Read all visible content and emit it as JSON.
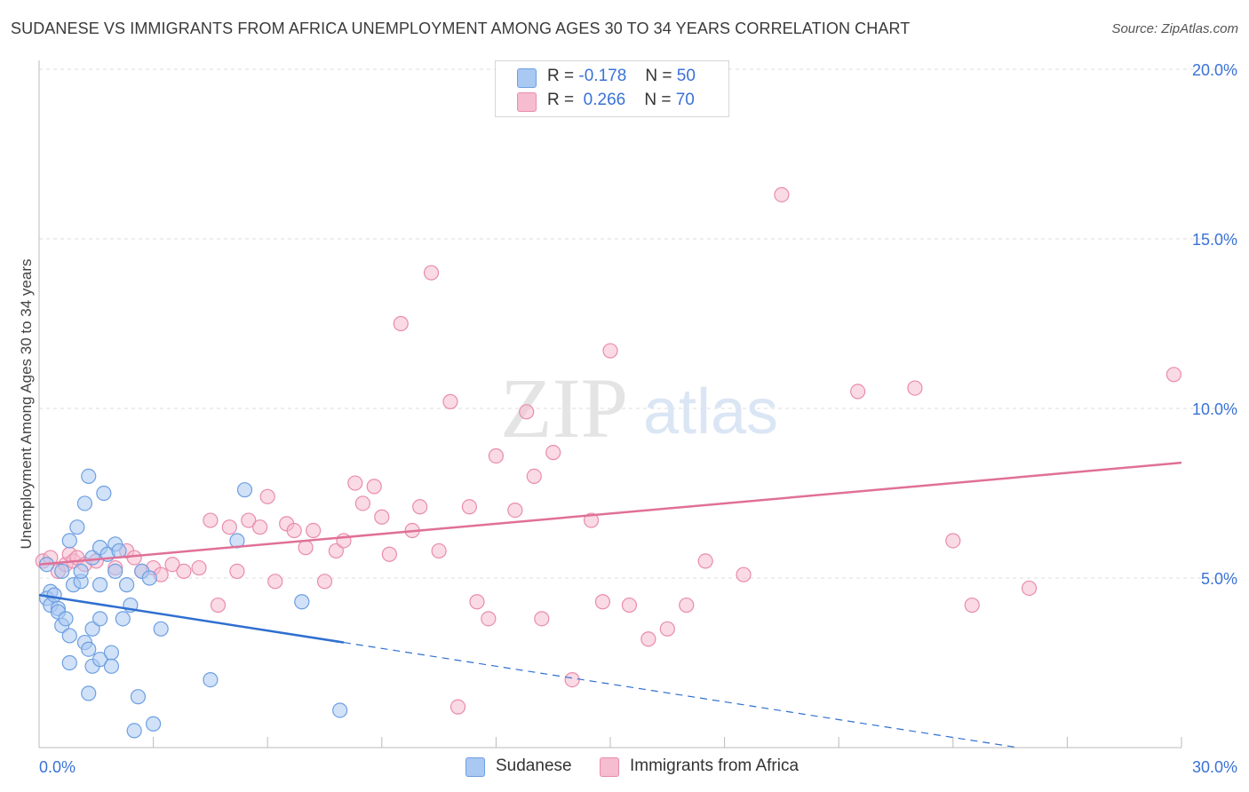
{
  "title": "SUDANESE VS IMMIGRANTS FROM AFRICA UNEMPLOYMENT AMONG AGES 30 TO 34 YEARS CORRELATION CHART",
  "source": "Source: ZipAtlas.com",
  "watermark": {
    "zip": "ZIP",
    "atlas": "atlas"
  },
  "colors": {
    "blue_fill": "#a9c8f2",
    "blue_stroke": "#6d9fe0",
    "blue_line": "#2f6fd0",
    "pink_fill": "#f6bcd0",
    "pink_stroke": "#e98cac",
    "pink_line": "#e07098",
    "axis_text": "#3a72d6",
    "grid": "#dcdcdc"
  },
  "legend": {
    "r_label": "R =",
    "n_label": "N =",
    "sudanese": {
      "r": "-0.178",
      "n": "50"
    },
    "africa": {
      "r": "0.266",
      "n": "70"
    }
  },
  "chart_data": {
    "type": "scatter",
    "title": "SUDANESE VS IMMIGRANTS FROM AFRICA UNEMPLOYMENT AMONG AGES 30 TO 34 YEARS CORRELATION CHART",
    "xlabel": "",
    "ylabel": "Unemployment Among Ages 30 to 34 years",
    "xlim": [
      0,
      30
    ],
    "ylim": [
      0,
      20
    ],
    "x_tick_labels": [
      "0.0%",
      "30.0%"
    ],
    "y_ticks": [
      5,
      10,
      15,
      20
    ],
    "y_tick_labels": [
      "5.0%",
      "10.0%",
      "15.0%",
      "20.0%"
    ],
    "grid": true,
    "legend_position": "top-center",
    "series": [
      {
        "name": "Sudanese",
        "color": "#a9c8f2",
        "points": [
          [
            0.2,
            5.4
          ],
          [
            0.3,
            4.6
          ],
          [
            0.2,
            4.4
          ],
          [
            0.3,
            4.2
          ],
          [
            0.4,
            4.5
          ],
          [
            0.5,
            4.1
          ],
          [
            0.5,
            4.0
          ],
          [
            0.6,
            5.2
          ],
          [
            0.6,
            3.6
          ],
          [
            0.7,
            3.8
          ],
          [
            0.8,
            6.1
          ],
          [
            0.8,
            3.3
          ],
          [
            0.8,
            2.5
          ],
          [
            0.9,
            4.8
          ],
          [
            1.0,
            6.5
          ],
          [
            1.1,
            4.9
          ],
          [
            1.1,
            5.2
          ],
          [
            1.2,
            3.1
          ],
          [
            1.2,
            7.2
          ],
          [
            1.3,
            8.0
          ],
          [
            1.3,
            2.9
          ],
          [
            1.3,
            1.6
          ],
          [
            1.4,
            3.5
          ],
          [
            1.4,
            2.4
          ],
          [
            1.4,
            5.6
          ],
          [
            1.6,
            5.9
          ],
          [
            1.6,
            4.8
          ],
          [
            1.6,
            2.6
          ],
          [
            1.6,
            3.8
          ],
          [
            1.7,
            7.5
          ],
          [
            1.8,
            5.7
          ],
          [
            1.9,
            2.8
          ],
          [
            1.9,
            2.4
          ],
          [
            2.0,
            6.0
          ],
          [
            2.0,
            5.2
          ],
          [
            2.1,
            5.8
          ],
          [
            2.2,
            3.8
          ],
          [
            2.3,
            4.8
          ],
          [
            2.4,
            4.2
          ],
          [
            2.5,
            0.5
          ],
          [
            2.6,
            1.5
          ],
          [
            2.7,
            5.2
          ],
          [
            2.9,
            5.0
          ],
          [
            3.0,
            0.7
          ],
          [
            3.2,
            3.5
          ],
          [
            4.5,
            2.0
          ],
          [
            5.2,
            6.1
          ],
          [
            5.4,
            7.6
          ],
          [
            6.9,
            4.3
          ],
          [
            7.9,
            1.1
          ]
        ]
      },
      {
        "name": "Immigrants from Africa",
        "color": "#f6bcd0",
        "points": [
          [
            0.1,
            5.5
          ],
          [
            0.3,
            5.6
          ],
          [
            0.5,
            5.2
          ],
          [
            0.7,
            5.4
          ],
          [
            0.8,
            5.7
          ],
          [
            0.9,
            5.5
          ],
          [
            1.0,
            5.6
          ],
          [
            1.2,
            5.4
          ],
          [
            1.5,
            5.5
          ],
          [
            2.0,
            5.3
          ],
          [
            2.3,
            5.8
          ],
          [
            2.5,
            5.6
          ],
          [
            2.7,
            5.2
          ],
          [
            3.0,
            5.3
          ],
          [
            3.2,
            5.1
          ],
          [
            3.5,
            5.4
          ],
          [
            3.8,
            5.2
          ],
          [
            4.2,
            5.3
          ],
          [
            4.5,
            6.7
          ],
          [
            4.7,
            4.2
          ],
          [
            5.0,
            6.5
          ],
          [
            5.2,
            5.2
          ],
          [
            5.5,
            6.7
          ],
          [
            5.8,
            6.5
          ],
          [
            6.0,
            7.4
          ],
          [
            6.2,
            4.9
          ],
          [
            6.5,
            6.6
          ],
          [
            6.7,
            6.4
          ],
          [
            7.0,
            5.9
          ],
          [
            7.2,
            6.4
          ],
          [
            7.5,
            4.9
          ],
          [
            7.8,
            5.8
          ],
          [
            8.0,
            6.1
          ],
          [
            8.3,
            7.8
          ],
          [
            8.5,
            7.2
          ],
          [
            8.8,
            7.7
          ],
          [
            9.0,
            6.8
          ],
          [
            9.2,
            5.7
          ],
          [
            9.5,
            12.5
          ],
          [
            9.8,
            6.4
          ],
          [
            10.0,
            7.1
          ],
          [
            10.3,
            14.0
          ],
          [
            10.5,
            5.8
          ],
          [
            10.8,
            10.2
          ],
          [
            11.0,
            1.2
          ],
          [
            11.3,
            7.1
          ],
          [
            11.5,
            4.3
          ],
          [
            11.8,
            3.8
          ],
          [
            12.0,
            8.6
          ],
          [
            12.5,
            7.0
          ],
          [
            12.8,
            9.9
          ],
          [
            13.0,
            8.0
          ],
          [
            13.2,
            3.8
          ],
          [
            13.5,
            8.7
          ],
          [
            14.0,
            2.0
          ],
          [
            14.5,
            6.7
          ],
          [
            14.8,
            4.3
          ],
          [
            15.0,
            11.7
          ],
          [
            15.5,
            4.2
          ],
          [
            16.0,
            3.2
          ],
          [
            16.5,
            3.5
          ],
          [
            17.0,
            4.2
          ],
          [
            17.5,
            5.5
          ],
          [
            18.5,
            5.1
          ],
          [
            19.5,
            16.3
          ],
          [
            21.5,
            10.5
          ],
          [
            23.0,
            10.6
          ],
          [
            24.0,
            6.1
          ],
          [
            24.5,
            4.2
          ],
          [
            26.0,
            4.7
          ],
          [
            29.8,
            11.0
          ]
        ]
      }
    ],
    "trend_lines": [
      {
        "series": "Sudanese",
        "solid_range": [
          0,
          8.0
        ],
        "dashed_range": [
          8.0,
          30
        ],
        "y_at_0": 4.5,
        "slope": -0.175
      },
      {
        "series": "Immigrants from Africa",
        "solid_range": [
          0,
          30
        ],
        "y_at_0": 5.4,
        "slope": 0.1
      }
    ]
  }
}
